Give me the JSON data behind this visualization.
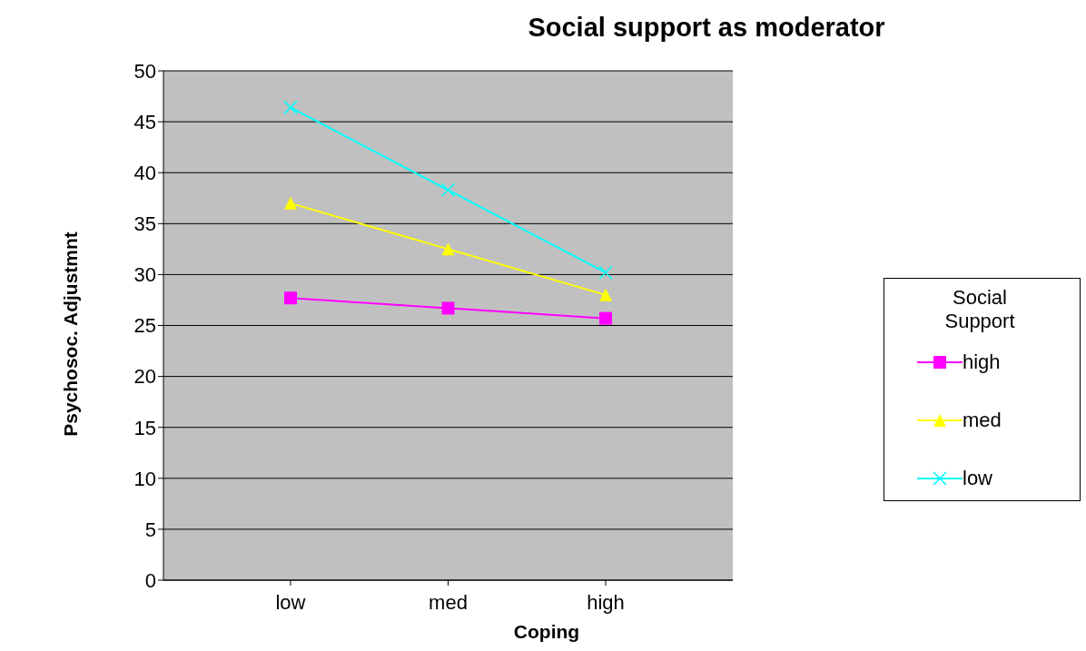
{
  "chart_data": {
    "type": "line",
    "title": "Social support as moderator",
    "xlabel": "Coping",
    "ylabel": "Psychosoc. Adjustmnt",
    "legend_title": "Social Support",
    "categories": [
      "low",
      "med",
      "high"
    ],
    "series": [
      {
        "name": "high",
        "color": "#ff00ff",
        "marker": "square",
        "values": [
          27.7,
          26.7,
          25.7
        ]
      },
      {
        "name": "med",
        "color": "#ffff00",
        "marker": "triangle",
        "values": [
          37.0,
          32.5,
          28.0
        ]
      },
      {
        "name": "low",
        "color": "#00ffff",
        "marker": "cross",
        "values": [
          46.4,
          38.3,
          30.2
        ]
      }
    ],
    "ylim": [
      0,
      50
    ],
    "yticks": [
      0,
      5,
      10,
      15,
      20,
      25,
      30,
      35,
      40,
      45,
      50
    ],
    "grid": "y",
    "legend": "right",
    "line_style": "solid"
  }
}
